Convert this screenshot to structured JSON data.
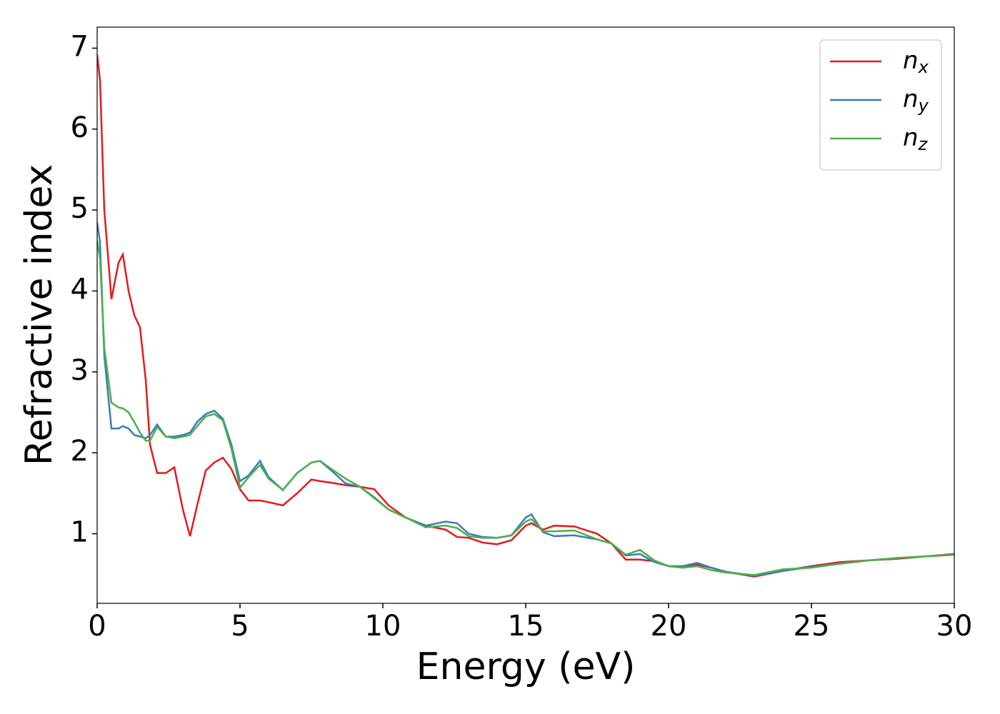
{
  "chart_data": {
    "type": "line",
    "xlabel": "Energy (eV)",
    "ylabel": "Refractive index",
    "x": [
      0,
      0.1,
      0.25,
      0.5,
      0.75,
      0.9,
      1.1,
      1.3,
      1.5,
      1.7,
      1.85,
      2.1,
      2.4,
      2.7,
      3.0,
      3.25,
      3.5,
      3.8,
      4.1,
      4.4,
      4.7,
      5.0,
      5.3,
      5.7,
      6.0,
      6.5,
      7.0,
      7.5,
      7.8,
      8.2,
      8.7,
      9.2,
      9.7,
      10.2,
      10.8,
      11.5,
      12.2,
      12.6,
      13.0,
      13.5,
      14.0,
      14.5,
      15.0,
      15.2,
      15.6,
      16.0,
      16.7,
      17.5,
      18.0,
      18.5,
      19.0,
      19.5,
      20.0,
      20.5,
      21.0,
      21.5,
      22.0,
      23.0,
      24.0,
      25.0,
      26.0,
      27.0,
      28.0,
      29.0,
      30.0
    ],
    "series": [
      {
        "name": "nx",
        "color": "#e41a1c",
        "values": [
          6.92,
          6.6,
          5.0,
          3.9,
          4.35,
          4.45,
          4.0,
          3.7,
          3.55,
          2.9,
          2.1,
          1.75,
          1.75,
          1.82,
          1.3,
          0.97,
          1.35,
          1.78,
          1.88,
          1.94,
          1.8,
          1.55,
          1.41,
          1.41,
          1.39,
          1.35,
          1.5,
          1.67,
          1.65,
          1.63,
          1.6,
          1.58,
          1.55,
          1.35,
          1.2,
          1.1,
          1.05,
          0.96,
          0.95,
          0.89,
          0.87,
          0.92,
          1.1,
          1.13,
          1.05,
          1.1,
          1.09,
          1.0,
          0.88,
          0.68,
          0.68,
          0.66,
          0.6,
          0.58,
          0.62,
          0.58,
          0.53,
          0.47,
          0.54,
          0.6,
          0.65,
          0.67,
          0.69,
          0.72,
          0.75
        ]
      },
      {
        "name": "ny",
        "color": "#377eb8",
        "values": [
          4.85,
          4.6,
          3.2,
          2.3,
          2.3,
          2.33,
          2.3,
          2.22,
          2.2,
          2.18,
          2.22,
          2.35,
          2.2,
          2.2,
          2.22,
          2.25,
          2.38,
          2.48,
          2.52,
          2.42,
          2.1,
          1.65,
          1.72,
          1.9,
          1.7,
          1.54,
          1.75,
          1.88,
          1.9,
          1.78,
          1.62,
          1.58,
          1.45,
          1.3,
          1.2,
          1.1,
          1.15,
          1.13,
          1.0,
          0.96,
          0.95,
          0.98,
          1.2,
          1.24,
          1.02,
          0.97,
          0.98,
          0.93,
          0.88,
          0.73,
          0.75,
          0.65,
          0.6,
          0.6,
          0.64,
          0.58,
          0.53,
          0.48,
          0.54,
          0.59,
          0.63,
          0.67,
          0.7,
          0.72,
          0.74
        ]
      },
      {
        "name": "nz",
        "color": "#4daf4a",
        "values": [
          4.62,
          4.4,
          3.3,
          2.62,
          2.56,
          2.55,
          2.5,
          2.38,
          2.25,
          2.15,
          2.15,
          2.32,
          2.2,
          2.18,
          2.2,
          2.22,
          2.33,
          2.45,
          2.48,
          2.4,
          2.05,
          1.57,
          1.7,
          1.85,
          1.68,
          1.54,
          1.75,
          1.88,
          1.9,
          1.8,
          1.68,
          1.58,
          1.44,
          1.3,
          1.2,
          1.08,
          1.1,
          1.07,
          0.97,
          0.95,
          0.95,
          0.98,
          1.15,
          1.18,
          1.03,
          1.03,
          1.04,
          0.93,
          0.88,
          0.74,
          0.8,
          0.67,
          0.6,
          0.58,
          0.6,
          0.55,
          0.52,
          0.49,
          0.56,
          0.58,
          0.63,
          0.67,
          0.7,
          0.72,
          0.74
        ]
      }
    ],
    "xlim": [
      0,
      30
    ],
    "xticks": [
      0,
      5,
      10,
      15,
      20,
      25,
      30
    ],
    "ylim": [
      0.14,
      7.26
    ],
    "yticks": [
      1,
      2,
      3,
      4,
      5,
      6,
      7
    ],
    "legend": "upper right",
    "grid": false
  }
}
